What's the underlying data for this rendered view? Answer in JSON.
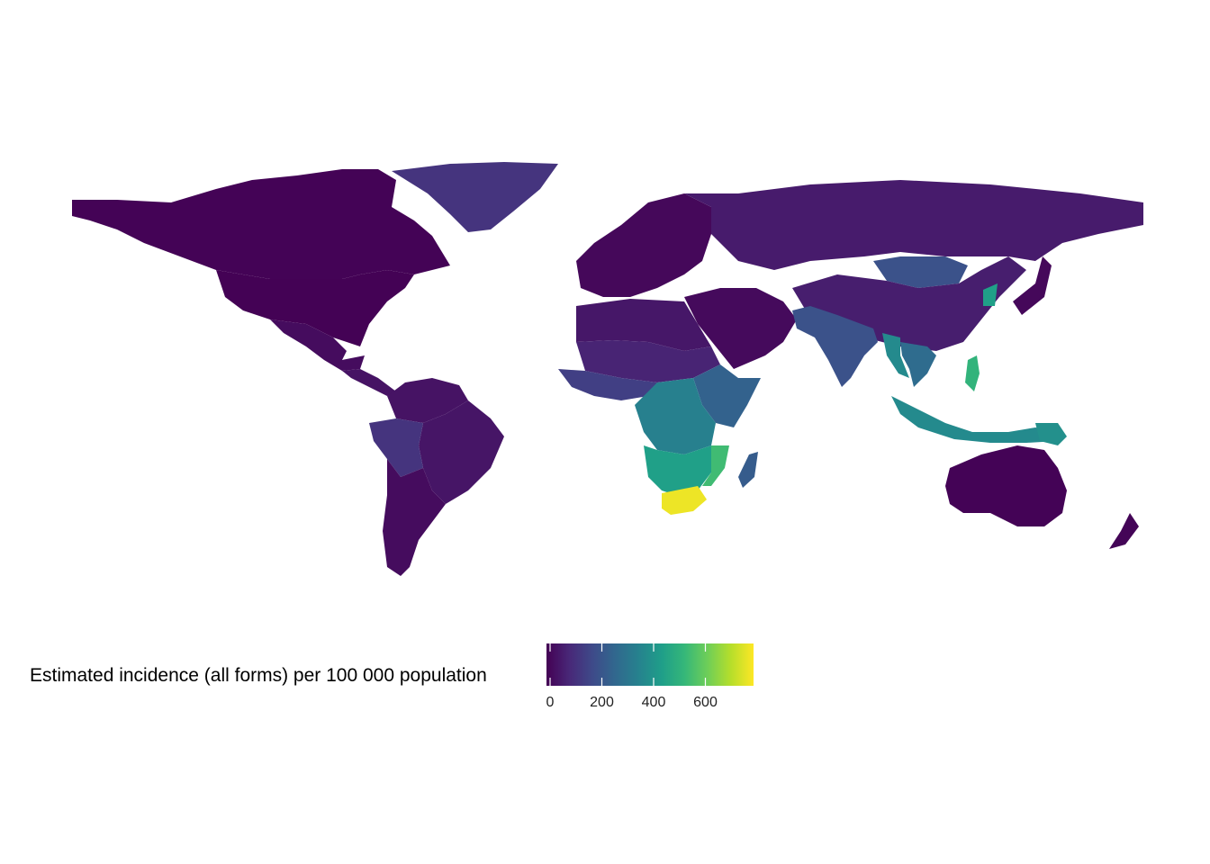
{
  "map": {
    "title": "",
    "legend": {
      "title": "Estimated incidence (all forms) per 100 000 population",
      "min": 0,
      "max": 800,
      "ticks": [
        {
          "value": 0,
          "label": "0"
        },
        {
          "value": 200,
          "label": "200"
        },
        {
          "value": 400,
          "label": "400"
        },
        {
          "value": 600,
          "label": "600"
        }
      ],
      "palette": [
        "#440154",
        "#482878",
        "#3e4a89",
        "#31688e",
        "#26828e",
        "#1f9e89",
        "#35b779",
        "#6ece58",
        "#b5de2b",
        "#fde725"
      ],
      "palette_name": "viridis",
      "placement": "bottom"
    },
    "regions": [
      {
        "name": "Canada",
        "value": 5
      },
      {
        "name": "United States",
        "value": 3
      },
      {
        "name": "Greenland",
        "value": 120
      },
      {
        "name": "Mexico",
        "value": 25
      },
      {
        "name": "Central America",
        "value": 40
      },
      {
        "name": "Colombia / Venezuela",
        "value": 40
      },
      {
        "name": "Peru / Bolivia",
        "value": 120
      },
      {
        "name": "Brazil",
        "value": 45
      },
      {
        "name": "Argentina / Chile",
        "value": 25
      },
      {
        "name": "Europe",
        "value": 15
      },
      {
        "name": "Russia",
        "value": 60
      },
      {
        "name": "Mongolia",
        "value": 200
      },
      {
        "name": "China",
        "value": 65
      },
      {
        "name": "Japan",
        "value": 15
      },
      {
        "name": "Korea",
        "value": 450
      },
      {
        "name": "Middle East",
        "value": 20
      },
      {
        "name": "North Africa",
        "value": 50
      },
      {
        "name": "Sahel",
        "value": 80
      },
      {
        "name": "West Africa",
        "value": 150
      },
      {
        "name": "East Africa",
        "value": 250
      },
      {
        "name": "Central Africa",
        "value": 350
      },
      {
        "name": "Southern Africa",
        "value": 450
      },
      {
        "name": "Mozambique",
        "value": 550
      },
      {
        "name": "South Africa",
        "value": 780
      },
      {
        "name": "Madagascar",
        "value": 230
      },
      {
        "name": "India",
        "value": 200
      },
      {
        "name": "Southeast Asia",
        "value": 280
      },
      {
        "name": "Myanmar",
        "value": 380
      },
      {
        "name": "Indonesia",
        "value": 380
      },
      {
        "name": "Philippines",
        "value": 520
      },
      {
        "name": "Papua New Guinea",
        "value": 400
      },
      {
        "name": "Australia",
        "value": 5
      },
      {
        "name": "New Zealand",
        "value": 8
      }
    ]
  }
}
